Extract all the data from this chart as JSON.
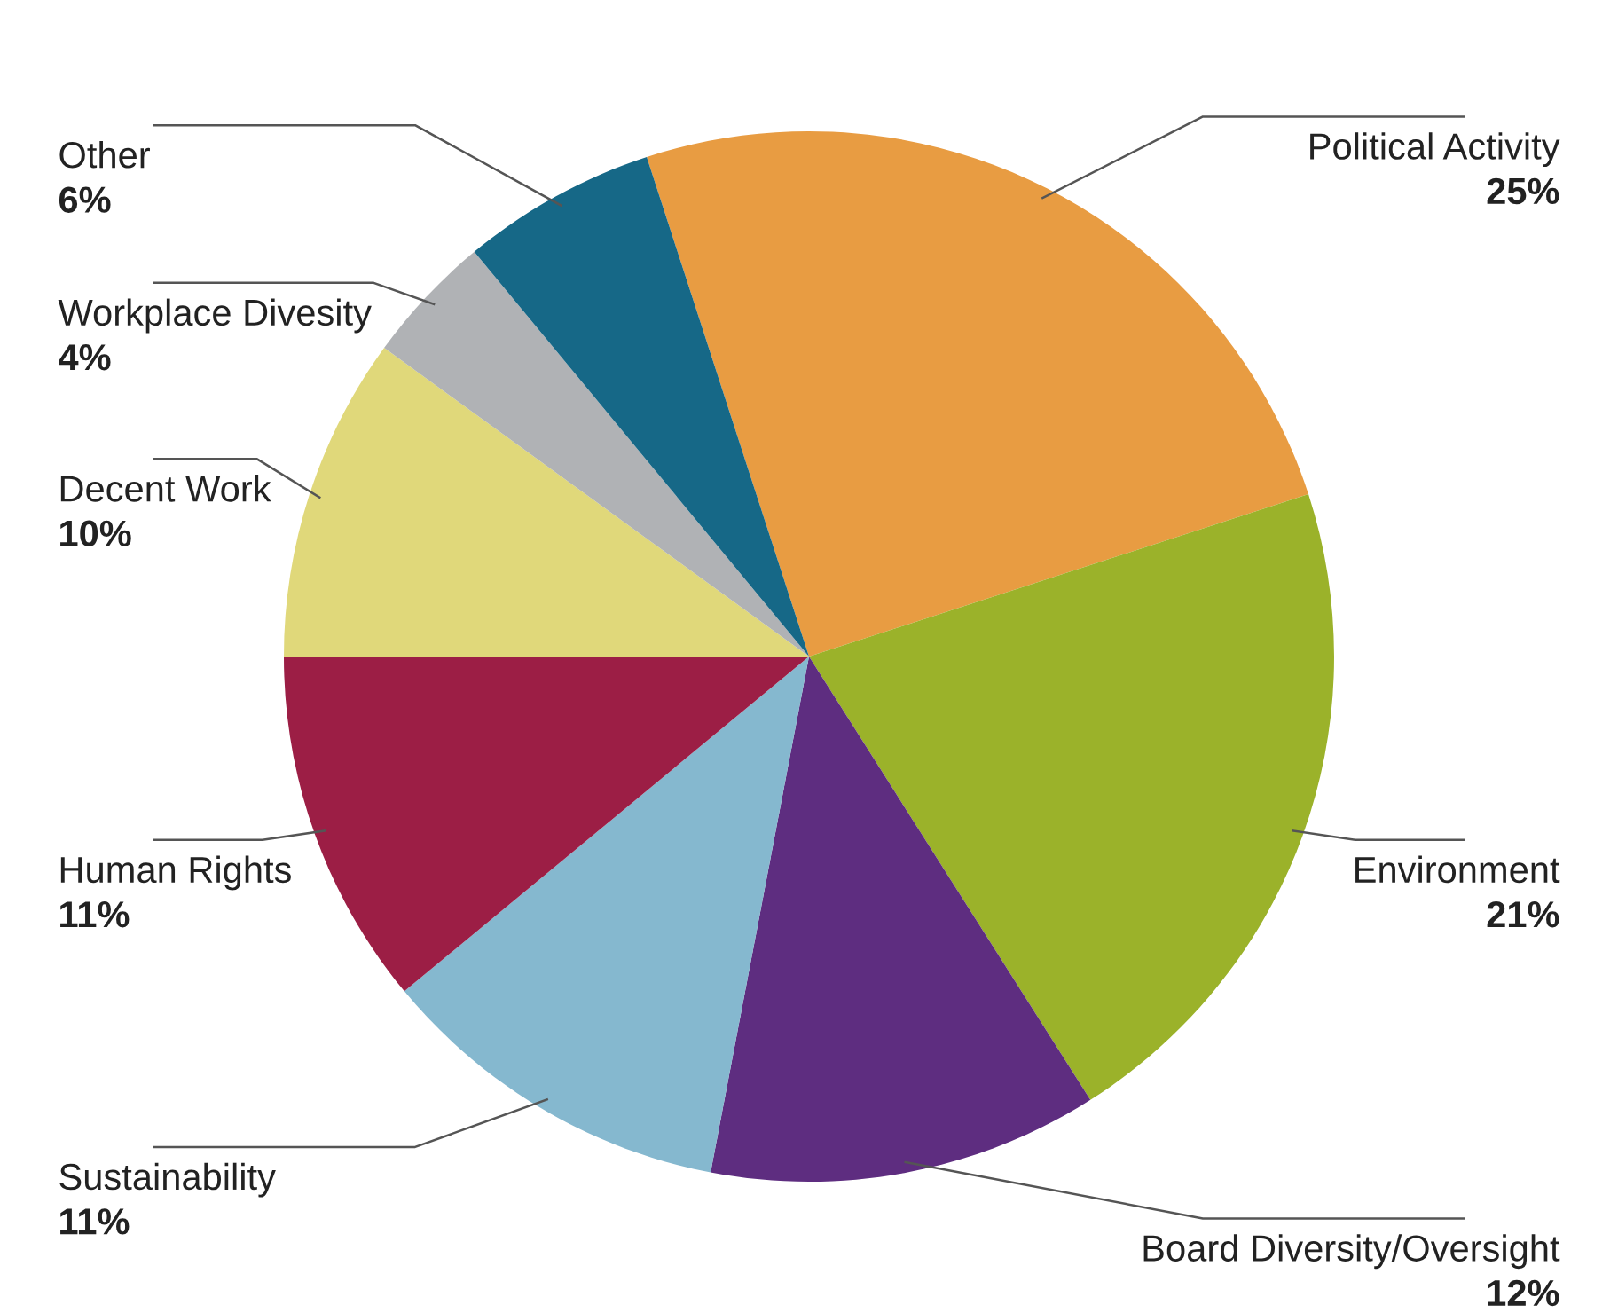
{
  "chart_data": {
    "type": "pie",
    "categories": [
      "Political Activity",
      "Environment",
      "Board Diversity/Oversight",
      "Sustainability",
      "Human Rights",
      "Decent Work",
      "Workplace Divesity",
      "Other"
    ],
    "values": [
      25,
      21,
      12,
      11,
      11,
      10,
      4,
      6
    ],
    "value_labels": [
      "25%",
      "21%",
      "12%",
      "11%",
      "11%",
      "10%",
      "4%",
      "6%"
    ],
    "colors": [
      "#e89c42",
      "#9bb22a",
      "#5e2d80",
      "#85b8cf",
      "#9c1e45",
      "#e0d87a",
      "#b0b2b5",
      "#166887"
    ]
  }
}
